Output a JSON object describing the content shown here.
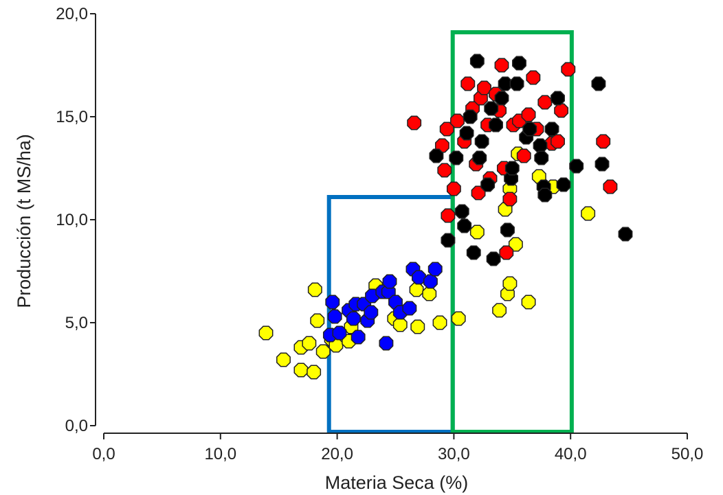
{
  "chart_data": {
    "type": "scatter",
    "xlabel": "Materia Seca (%)",
    "ylabel": "Producción (t MS/ha)",
    "xlim": [
      0,
      50
    ],
    "ylim": [
      0,
      20
    ],
    "xticks": [
      "0,0",
      "10,0",
      "20,0",
      "30,0",
      "40,0",
      "50,0"
    ],
    "yticks": [
      "0,0",
      "5,0",
      "10,0",
      "15,0",
      "20,0"
    ],
    "grid": false,
    "legend": "none",
    "marker": "octagon",
    "highlight_boxes": [
      {
        "color": "#0070c0",
        "x": [
          19.3,
          29.9
        ],
        "y": [
          0,
          11.1
        ]
      },
      {
        "color": "#00b050",
        "x": [
          29.9,
          40.1
        ],
        "y": [
          0,
          19.1
        ]
      }
    ],
    "series": [
      {
        "color": "#ffff00",
        "points": [
          [
            13.9,
            4.5
          ],
          [
            15.4,
            3.2
          ],
          [
            16.9,
            3.8
          ],
          [
            16.9,
            2.7
          ],
          [
            17.6,
            4.0
          ],
          [
            18.0,
            2.6
          ],
          [
            18.1,
            6.6
          ],
          [
            18.3,
            5.1
          ],
          [
            18.8,
            3.6
          ],
          [
            19.5,
            4.2
          ],
          [
            19.9,
            3.9
          ],
          [
            21.0,
            4.1
          ],
          [
            21.2,
            4.8
          ],
          [
            23.3,
            6.8
          ],
          [
            24.9,
            5.2
          ],
          [
            25.4,
            4.9
          ],
          [
            26.8,
            6.6
          ],
          [
            26.9,
            4.8
          ],
          [
            27.9,
            6.4
          ],
          [
            28.8,
            5.0
          ],
          [
            30.4,
            5.2
          ],
          [
            32.0,
            9.4
          ],
          [
            33.9,
            5.6
          ],
          [
            34.6,
            6.4
          ],
          [
            34.8,
            6.9
          ],
          [
            34.8,
            11.5
          ],
          [
            34.4,
            10.5
          ],
          [
            35.3,
            8.8
          ],
          [
            35.5,
            13.2
          ],
          [
            36.4,
            6.0
          ],
          [
            37.3,
            12.1
          ],
          [
            38.5,
            11.6
          ],
          [
            41.5,
            10.3
          ]
        ]
      },
      {
        "color": "#0000ff",
        "points": [
          [
            19.4,
            4.4
          ],
          [
            19.6,
            6.0
          ],
          [
            19.8,
            5.3
          ],
          [
            20.2,
            4.5
          ],
          [
            21.0,
            5.6
          ],
          [
            21.4,
            5.2
          ],
          [
            21.6,
            5.9
          ],
          [
            21.8,
            4.3
          ],
          [
            22.3,
            5.9
          ],
          [
            22.6,
            5.1
          ],
          [
            22.9,
            5.5
          ],
          [
            23.0,
            6.3
          ],
          [
            23.9,
            6.5
          ],
          [
            24.2,
            4.0
          ],
          [
            24.4,
            6.5
          ],
          [
            24.5,
            7.0
          ],
          [
            25.0,
            6.0
          ],
          [
            25.4,
            5.5
          ],
          [
            26.2,
            5.7
          ],
          [
            26.5,
            7.6
          ],
          [
            27.0,
            7.2
          ],
          [
            28.0,
            7.0
          ],
          [
            28.4,
            7.6
          ]
        ]
      },
      {
        "color": "#ff0000",
        "points": [
          [
            26.6,
            14.7
          ],
          [
            29.0,
            13.6
          ],
          [
            29.2,
            12.4
          ],
          [
            29.4,
            14.4
          ],
          [
            29.5,
            10.2
          ],
          [
            30.0,
            11.5
          ],
          [
            30.3,
            14.8
          ],
          [
            30.9,
            13.8
          ],
          [
            31.2,
            16.6
          ],
          [
            31.6,
            15.4
          ],
          [
            31.9,
            12.7
          ],
          [
            32.1,
            11.3
          ],
          [
            32.3,
            15.9
          ],
          [
            32.6,
            16.4
          ],
          [
            32.9,
            14.6
          ],
          [
            33.1,
            12.0
          ],
          [
            33.6,
            16.1
          ],
          [
            33.9,
            15.3
          ],
          [
            34.1,
            17.5
          ],
          [
            34.3,
            12.5
          ],
          [
            34.5,
            8.4
          ],
          [
            34.8,
            11.0
          ],
          [
            35.1,
            14.6
          ],
          [
            35.6,
            14.8
          ],
          [
            36.0,
            13.1
          ],
          [
            36.4,
            15.1
          ],
          [
            36.8,
            16.9
          ],
          [
            37.1,
            14.4
          ],
          [
            37.8,
            15.7
          ],
          [
            38.4,
            13.7
          ],
          [
            38.9,
            13.8
          ],
          [
            39.2,
            15.3
          ],
          [
            39.8,
            17.3
          ],
          [
            42.8,
            13.8
          ],
          [
            43.4,
            11.6
          ]
        ]
      },
      {
        "color": "#000000",
        "points": [
          [
            28.5,
            13.1
          ],
          [
            29.5,
            9.0
          ],
          [
            30.2,
            13.0
          ],
          [
            30.7,
            10.4
          ],
          [
            30.9,
            9.7
          ],
          [
            31.1,
            14.2
          ],
          [
            31.4,
            15.0
          ],
          [
            31.7,
            8.4
          ],
          [
            32.0,
            17.7
          ],
          [
            32.2,
            13.0
          ],
          [
            32.4,
            13.8
          ],
          [
            32.9,
            11.7
          ],
          [
            33.2,
            15.4
          ],
          [
            33.4,
            8.1
          ],
          [
            33.6,
            14.6
          ],
          [
            34.1,
            15.9
          ],
          [
            34.4,
            16.6
          ],
          [
            34.6,
            9.5
          ],
          [
            34.9,
            12.0
          ],
          [
            35.0,
            12.5
          ],
          [
            35.4,
            16.6
          ],
          [
            35.6,
            17.6
          ],
          [
            36.2,
            14.0
          ],
          [
            36.5,
            14.4
          ],
          [
            37.4,
            13.6
          ],
          [
            37.5,
            13.0
          ],
          [
            37.7,
            11.6
          ],
          [
            37.8,
            11.2
          ],
          [
            38.4,
            14.4
          ],
          [
            38.9,
            15.9
          ],
          [
            39.4,
            11.7
          ],
          [
            40.5,
            12.6
          ],
          [
            42.4,
            16.6
          ],
          [
            42.7,
            12.7
          ],
          [
            44.7,
            9.3
          ]
        ]
      }
    ]
  }
}
